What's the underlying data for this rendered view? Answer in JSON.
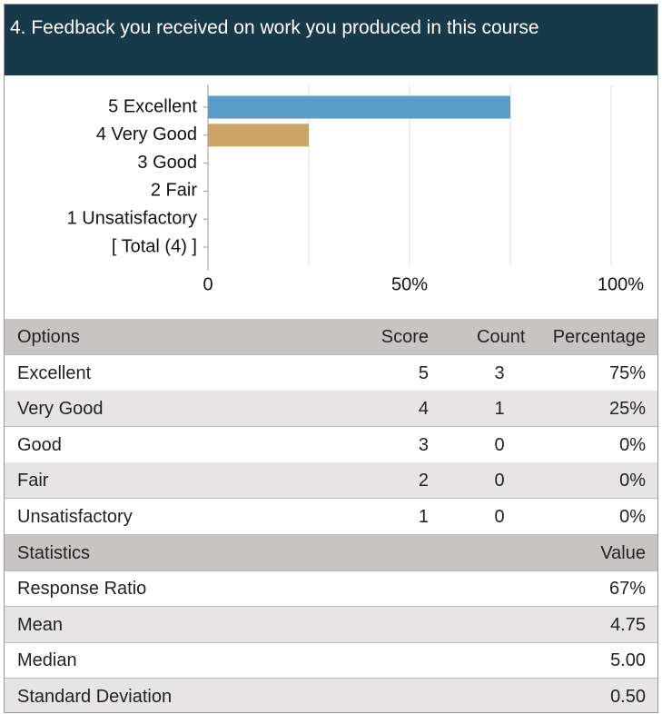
{
  "header": {
    "title": "4. Feedback you received on work you produced in this course"
  },
  "chart_data": {
    "type": "bar",
    "orientation": "horizontal",
    "categories": [
      "5 Excellent",
      "4 Very Good",
      "3 Good",
      "2 Fair",
      "1 Unsatisfactory",
      "[ Total (4) ]"
    ],
    "values": [
      75,
      25,
      0,
      0,
      0,
      null
    ],
    "colors": [
      "#5b9bc9",
      "#cba566"
    ],
    "xlim": [
      0,
      100
    ],
    "xticks": [
      0,
      {
        "value": 50,
        "label": "50%"
      },
      {
        "value": 100,
        "label": "100%"
      }
    ],
    "minor_xticks": [
      25,
      75
    ],
    "grid": true
  },
  "options_table": {
    "header": [
      "Options",
      "Score",
      "Count",
      "Percentage"
    ],
    "rows": [
      [
        "Excellent",
        "5",
        "3",
        "75%"
      ],
      [
        "Very Good",
        "4",
        "1",
        "25%"
      ],
      [
        "Good",
        "3",
        "0",
        "0%"
      ],
      [
        "Fair",
        "2",
        "0",
        "0%"
      ],
      [
        "Unsatisfactory",
        "1",
        "0",
        "0%"
      ]
    ]
  },
  "stats_table": {
    "header": [
      "Statistics",
      "Value"
    ],
    "rows": [
      [
        "Response Ratio",
        "67%"
      ],
      [
        "Mean",
        "4.75"
      ],
      [
        "Median",
        "5.00"
      ],
      [
        "Standard Deviation",
        "0.50"
      ]
    ]
  }
}
